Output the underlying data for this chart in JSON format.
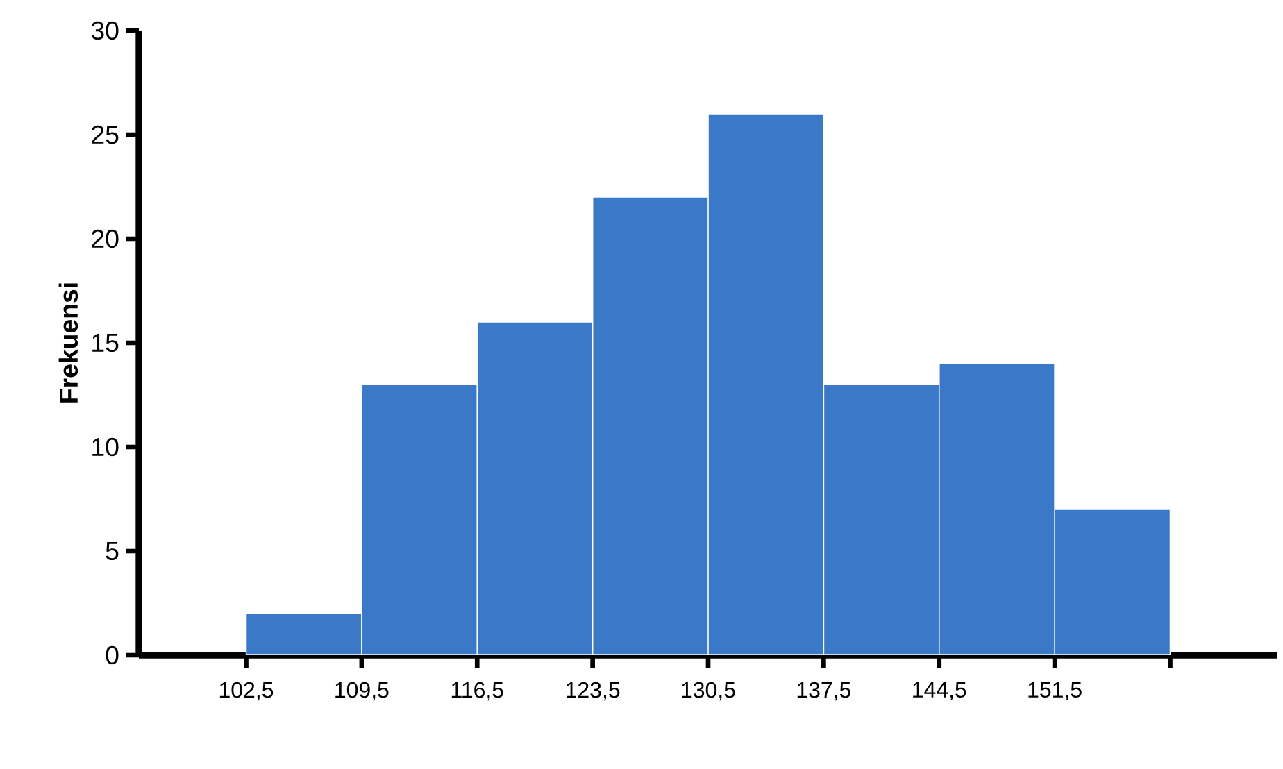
{
  "chart_data": {
    "type": "histogram",
    "ylabel": "Frekuensi",
    "bins": [
      102.5,
      109.5,
      116.5,
      123.5,
      130.5,
      137.5,
      144.5,
      151.5,
      158.5
    ],
    "values": [
      2,
      13,
      16,
      22,
      26,
      13,
      14,
      7
    ],
    "color": "#3a78c8",
    "xlim": [
      96,
      165
    ],
    "ylim": [
      0,
      30
    ],
    "xticks": [
      {
        "value": 102.5,
        "label": "102,5"
      },
      {
        "value": 109.5,
        "label": "109,5"
      },
      {
        "value": 116.5,
        "label": "116,5"
      },
      {
        "value": 123.5,
        "label": "123,5"
      },
      {
        "value": 130.5,
        "label": "130,5"
      },
      {
        "value": 137.5,
        "label": "137,5"
      },
      {
        "value": 144.5,
        "label": "144,5"
      },
      {
        "value": 151.5,
        "label": "151,5"
      },
      {
        "value": 158.5,
        "label": null
      }
    ],
    "yticks": [
      0,
      5,
      10,
      15,
      20,
      25,
      30
    ],
    "grid": false
  }
}
